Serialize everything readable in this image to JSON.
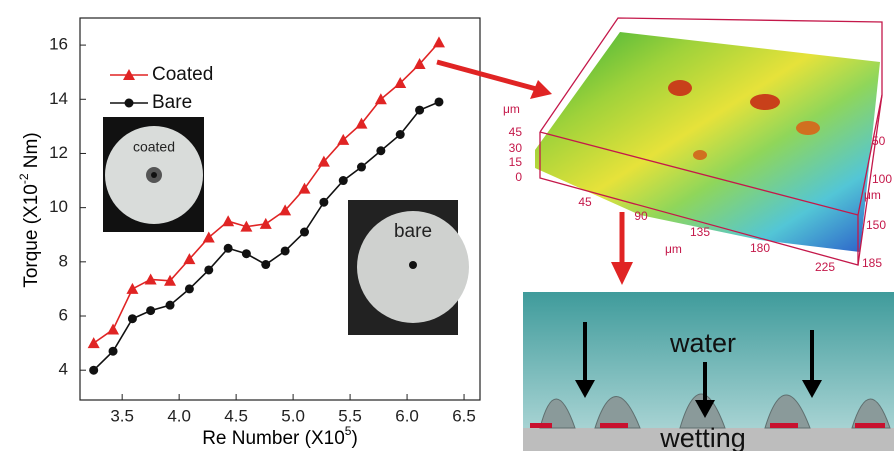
{
  "chart_data": {
    "type": "line",
    "x_label": {
      "text": "Re Number (X10",
      "sup": "5",
      "end": ")"
    },
    "y_label": {
      "text": "Torque (X10",
      "sup": "-2",
      "end": " Nm)"
    },
    "x": [
      3.25,
      3.42,
      3.59,
      3.75,
      3.92,
      4.09,
      4.26,
      4.43,
      4.59,
      4.76,
      4.93,
      5.1,
      5.27,
      5.44,
      5.6,
      5.77,
      5.94,
      6.11,
      6.28
    ],
    "series": [
      {
        "name": "Coated",
        "color": "#e02424",
        "marker": "triangle",
        "values": [
          5.0,
          5.5,
          7.0,
          7.35,
          7.3,
          8.1,
          8.9,
          9.5,
          9.3,
          9.4,
          9.9,
          10.7,
          11.7,
          12.5,
          13.1,
          14.0,
          14.6,
          15.3,
          16.1
        ]
      },
      {
        "name": "Bare",
        "color": "#111111",
        "marker": "circle",
        "values": [
          4.0,
          4.7,
          5.9,
          6.2,
          6.4,
          7.0,
          7.7,
          8.5,
          8.3,
          7.9,
          8.4,
          9.1,
          10.2,
          11.0,
          11.5,
          12.1,
          12.7,
          13.6,
          13.9
        ]
      }
    ],
    "xlim": [
      3.13,
      6.64
    ],
    "ylim": [
      2.9,
      17
    ],
    "xticks": [
      {
        "value": 3.5,
        "label": "3.5"
      },
      {
        "value": 4,
        "label": "4.0"
      },
      {
        "value": 4.5,
        "label": "4.5"
      },
      {
        "value": 5,
        "label": "5.0"
      },
      {
        "value": 5.5,
        "label": "5.5"
      },
      {
        "value": 6,
        "label": "6.0"
      },
      {
        "value": 6.5,
        "label": "6.5"
      }
    ],
    "yticks": [
      4,
      6,
      8,
      10,
      12,
      14,
      16
    ],
    "legend": "upper left"
  },
  "photos": {
    "coated": "coated",
    "bare": "bare"
  },
  "surface": {
    "z_unit": "μm",
    "z_ticks": [
      "45",
      "30",
      "15",
      "0"
    ],
    "x_unit": "μm",
    "x_ticks": [
      "45",
      "90",
      "135",
      "180",
      "225"
    ],
    "y_unit": "μm",
    "y_ticks": [
      "50",
      "100",
      "150",
      "185"
    ]
  },
  "diagram": {
    "top": "water",
    "bottom": "wetting"
  }
}
